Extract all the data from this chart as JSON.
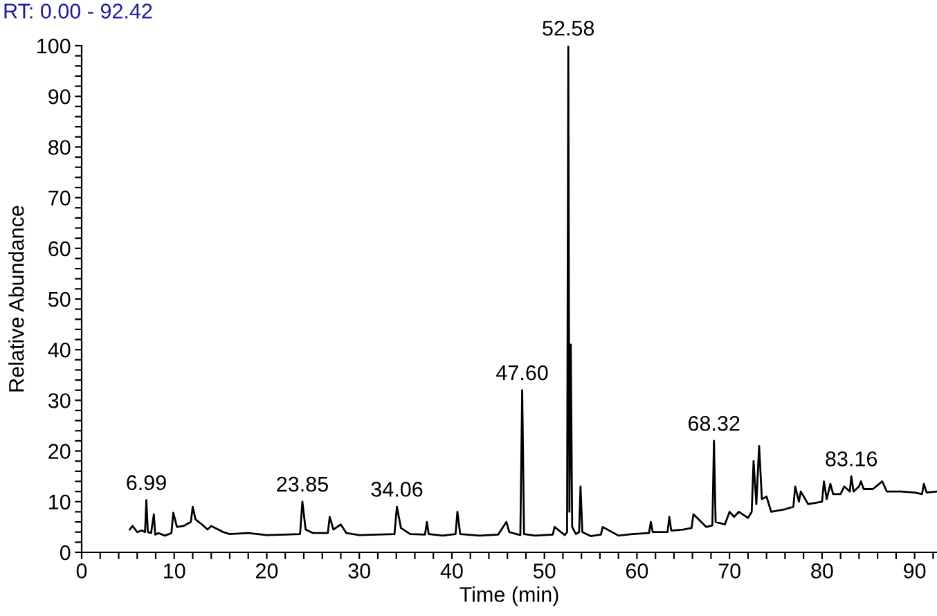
{
  "chart_data": {
    "type": "line",
    "title": "RT: 0.00 - 92.42",
    "xlabel": "Time (min)",
    "ylabel": "Relative Abundance",
    "x": [
      5.2,
      5.5,
      6.0,
      6.5,
      6.85,
      6.99,
      7.15,
      7.5,
      7.8,
      7.95,
      8.3,
      9.0,
      9.7,
      9.9,
      10.3,
      11.0,
      11.8,
      12.0,
      12.3,
      13.0,
      13.6,
      14.0,
      15.3,
      16.0,
      18.0,
      20.0,
      22.0,
      23.6,
      23.85,
      24.2,
      25.0,
      26.6,
      26.8,
      27.2,
      28.0,
      28.6,
      30.0,
      32.0,
      33.8,
      34.06,
      34.5,
      35.5,
      37.1,
      37.3,
      37.5,
      39.0,
      40.4,
      40.6,
      40.9,
      43.0,
      45.0,
      45.9,
      46.2,
      47.4,
      47.6,
      47.8,
      49.0,
      50.9,
      51.1,
      52.2,
      52.45,
      52.58,
      52.7,
      52.85,
      53.0,
      53.4,
      53.75,
      53.9,
      54.1,
      55.0,
      56.1,
      56.3,
      58.0,
      59.5,
      61.3,
      61.5,
      61.7,
      63.3,
      63.5,
      63.7,
      65.0,
      65.9,
      66.1,
      67.5,
      68.15,
      68.32,
      68.5,
      69.5,
      70.0,
      70.5,
      71.0,
      72.0,
      72.4,
      72.6,
      72.9,
      73.2,
      73.5,
      74.0,
      74.5,
      76.0,
      76.9,
      77.1,
      77.5,
      77.7,
      78.5,
      80.0,
      80.2,
      80.5,
      80.9,
      81.2,
      82.0,
      82.4,
      83.0,
      83.16,
      83.4,
      84.0,
      84.2,
      84.5,
      85.5,
      86.5,
      87.0,
      88.5,
      90.0,
      90.8,
      91.0,
      91.3,
      92.42
    ],
    "values": [
      4.5,
      5.2,
      4.0,
      4.3,
      4.0,
      10.3,
      4.0,
      3.8,
      7.5,
      3.5,
      3.8,
      3.3,
      3.8,
      7.8,
      5.0,
      5.2,
      6.0,
      9.0,
      6.5,
      5.5,
      4.5,
      5.2,
      4.0,
      3.6,
      3.8,
      3.4,
      3.5,
      3.6,
      10.0,
      4.5,
      3.8,
      3.8,
      7.0,
      4.5,
      5.5,
      3.8,
      3.4,
      3.5,
      3.6,
      9.0,
      4.8,
      3.6,
      3.5,
      6.0,
      3.6,
      3.3,
      3.6,
      8.0,
      3.6,
      3.3,
      3.5,
      6.0,
      4.0,
      3.4,
      32.0,
      3.6,
      3.3,
      3.5,
      5.0,
      3.4,
      4.0,
      100.0,
      8.0,
      41.0,
      5.0,
      3.6,
      4.0,
      13.0,
      4.0,
      3.2,
      3.5,
      5.0,
      3.3,
      3.6,
      3.8,
      6.0,
      4.0,
      4.0,
      7.0,
      4.3,
      4.5,
      4.8,
      7.5,
      5.0,
      5.3,
      22.0,
      6.0,
      5.5,
      8.0,
      7.0,
      8.0,
      6.8,
      8.0,
      18.0,
      9.5,
      21.0,
      10.5,
      11.0,
      8.0,
      8.5,
      9.0,
      13.0,
      10.0,
      12.0,
      9.5,
      10.0,
      14.0,
      10.5,
      13.5,
      11.5,
      11.5,
      13.0,
      12.0,
      15.0,
      12.0,
      13.0,
      14.0,
      12.5,
      12.5,
      14.0,
      12.0,
      12.0,
      11.8,
      11.5,
      13.5,
      11.8,
      12.0
    ],
    "color": "#000000",
    "annotations": [
      {
        "text": "6.99",
        "x": 6.99,
        "y": 10.3
      },
      {
        "text": "23.85",
        "x": 23.85,
        "y": 10.0
      },
      {
        "text": "34.06",
        "x": 34.06,
        "y": 9.0
      },
      {
        "text": "47.60",
        "x": 47.6,
        "y": 32.0
      },
      {
        "text": "52.58",
        "x": 52.58,
        "y": 100.0
      },
      {
        "text": "68.32",
        "x": 68.32,
        "y": 22.0
      },
      {
        "text": "83.16",
        "x": 83.16,
        "y": 15.0
      }
    ],
    "xlim": [
      0,
      92.42
    ],
    "ylim": [
      0,
      100
    ],
    "xticks": [
      0,
      {
        "value": 2,
        "label": null
      },
      {
        "value": 4,
        "label": null
      },
      {
        "value": 6,
        "label": null
      },
      {
        "value": 8,
        "label": null
      },
      10,
      {
        "value": 12,
        "label": null
      },
      {
        "value": 14,
        "label": null
      },
      {
        "value": 16,
        "label": null
      },
      {
        "value": 18,
        "label": null
      },
      20,
      {
        "value": 22,
        "label": null
      },
      {
        "value": 24,
        "label": null
      },
      {
        "value": 26,
        "label": null
      },
      {
        "value": 28,
        "label": null
      },
      30,
      {
        "value": 32,
        "label": null
      },
      {
        "value": 34,
        "label": null
      },
      {
        "value": 36,
        "label": null
      },
      {
        "value": 38,
        "label": null
      },
      40,
      {
        "value": 42,
        "label": null
      },
      {
        "value": 44,
        "label": null
      },
      {
        "value": 46,
        "label": null
      },
      {
        "value": 48,
        "label": null
      },
      50,
      {
        "value": 52,
        "label": null
      },
      {
        "value": 54,
        "label": null
      },
      {
        "value": 56,
        "label": null
      },
      {
        "value": 58,
        "label": null
      },
      60,
      {
        "value": 62,
        "label": null
      },
      {
        "value": 64,
        "label": null
      },
      {
        "value": 66,
        "label": null
      },
      {
        "value": 68,
        "label": null
      },
      70,
      {
        "value": 72,
        "label": null
      },
      {
        "value": 74,
        "label": null
      },
      {
        "value": 76,
        "label": null
      },
      {
        "value": 78,
        "label": null
      },
      80,
      {
        "value": 82,
        "label": null
      },
      {
        "value": 84,
        "label": null
      },
      {
        "value": 86,
        "label": null
      },
      {
        "value": 88,
        "label": null
      },
      90,
      {
        "value": 92,
        "label": null
      }
    ],
    "yticks": [
      0,
      {
        "value": 2,
        "label": null
      },
      {
        "value": 4,
        "label": null
      },
      {
        "value": 6,
        "label": null
      },
      {
        "value": 8,
        "label": null
      },
      10,
      {
        "value": 12,
        "label": null
      },
      {
        "value": 14,
        "label": null
      },
      {
        "value": 16,
        "label": null
      },
      {
        "value": 18,
        "label": null
      },
      20,
      {
        "value": 22,
        "label": null
      },
      {
        "value": 24,
        "label": null
      },
      {
        "value": 26,
        "label": null
      },
      {
        "value": 28,
        "label": null
      },
      30,
      {
        "value": 32,
        "label": null
      },
      {
        "value": 34,
        "label": null
      },
      {
        "value": 36,
        "label": null
      },
      {
        "value": 38,
        "label": null
      },
      40,
      {
        "value": 42,
        "label": null
      },
      {
        "value": 44,
        "label": null
      },
      {
        "value": 46,
        "label": null
      },
      {
        "value": 48,
        "label": null
      },
      50,
      {
        "value": 52,
        "label": null
      },
      {
        "value": 54,
        "label": null
      },
      {
        "value": 56,
        "label": null
      },
      {
        "value": 58,
        "label": null
      },
      60,
      {
        "value": 62,
        "label": null
      },
      {
        "value": 64,
        "label": null
      },
      {
        "value": 66,
        "label": null
      },
      {
        "value": 68,
        "label": null
      },
      70,
      {
        "value": 72,
        "label": null
      },
      {
        "value": 74,
        "label": null
      },
      {
        "value": 76,
        "label": null
      },
      {
        "value": 78,
        "label": null
      },
      80,
      {
        "value": 82,
        "label": null
      },
      {
        "value": 84,
        "label": null
      },
      {
        "value": 86,
        "label": null
      },
      {
        "value": 88,
        "label": null
      },
      90,
      {
        "value": 92,
        "label": null
      },
      {
        "value": 94,
        "label": null
      },
      {
        "value": 96,
        "label": null
      },
      {
        "value": 98,
        "label": null
      },
      100
    ]
  }
}
